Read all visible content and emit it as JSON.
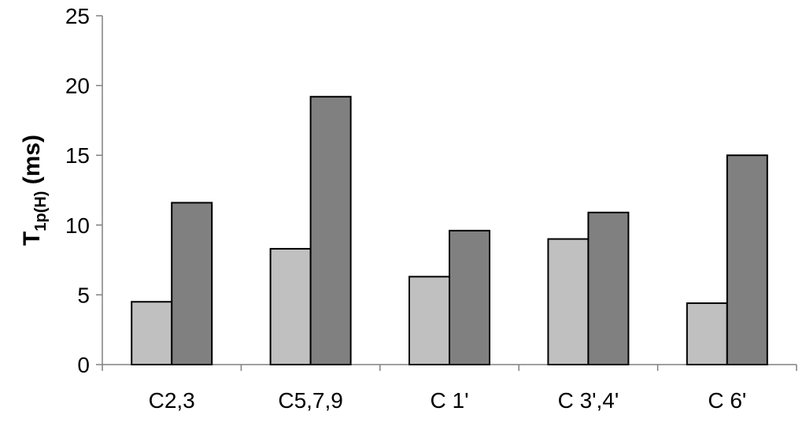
{
  "chart_data": {
    "type": "bar",
    "categories": [
      "C2,3",
      "C5,7,9",
      "C 1'",
      "C 3',4'",
      "C 6'"
    ],
    "series": [
      {
        "values": [
          4.5,
          8.3,
          6.3,
          9.0,
          4.4
        ],
        "color": "#c0c0c0"
      },
      {
        "values": [
          11.6,
          19.2,
          9.6,
          10.9,
          15.0
        ],
        "color": "#808080"
      }
    ],
    "ylabel": {
      "main": "T",
      "subscript": "1p(H)",
      "unit": " (ms)"
    },
    "yticks": [
      "0",
      "5",
      "10",
      "15",
      "20",
      "25"
    ],
    "ylim": [
      0,
      25
    ],
    "grid": false,
    "legend": "none"
  }
}
